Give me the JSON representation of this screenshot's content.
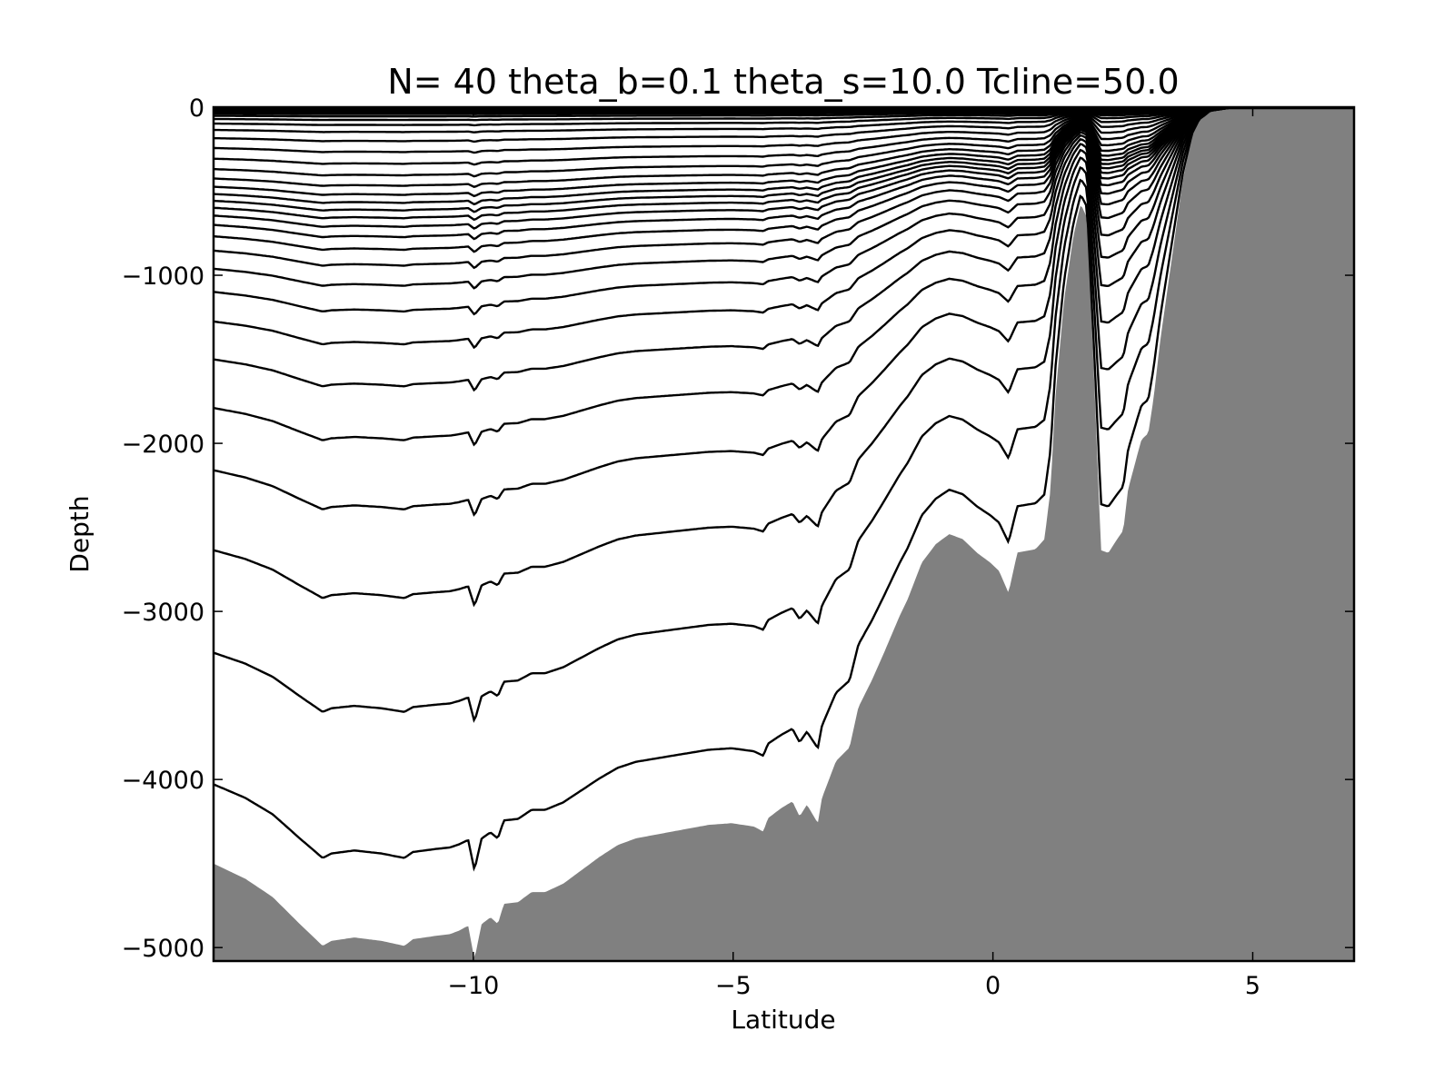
{
  "chart_data": {
    "type": "area",
    "title": "N= 40 theta_b=0.1 theta_s=10.0 Tcline=50.0",
    "xlabel": "Latitude",
    "ylabel": "Depth",
    "xlim": [
      -15.0,
      6.95
    ],
    "ylim": [
      -5080,
      0
    ],
    "xticks": [
      -10,
      -5,
      0,
      5
    ],
    "xtick_labels": [
      "−10",
      "−5",
      "0",
      "5"
    ],
    "yticks": [
      0,
      -1000,
      -2000,
      -3000,
      -4000,
      -5000
    ],
    "ytick_labels": [
      "0",
      "−1000",
      "−2000",
      "−3000",
      "−4000",
      "−5000"
    ],
    "grid": false,
    "params": {
      "N": 40,
      "theta_b": 0.1,
      "theta_s": 10.0,
      "Tcline": 50.0
    },
    "colors": {
      "bathymetry": "#808080",
      "levels": "#000000"
    },
    "bathymetry": [
      [
        -15.0,
        4500
      ],
      [
        -14.39,
        4590
      ],
      [
        -13.86,
        4700
      ],
      [
        -13.34,
        4860
      ],
      [
        -12.9,
        4990
      ],
      [
        -12.73,
        4960
      ],
      [
        -12.29,
        4940
      ],
      [
        -11.77,
        4960
      ],
      [
        -11.33,
        4990
      ],
      [
        -11.16,
        4950
      ],
      [
        -10.72,
        4930
      ],
      [
        -10.45,
        4920
      ],
      [
        -10.28,
        4900
      ],
      [
        -10.1,
        4870
      ],
      [
        -9.98,
        5070
      ],
      [
        -9.84,
        4860
      ],
      [
        -9.67,
        4820
      ],
      [
        -9.53,
        4860
      ],
      [
        -9.41,
        4740
      ],
      [
        -9.14,
        4730
      ],
      [
        -8.88,
        4670
      ],
      [
        -8.62,
        4670
      ],
      [
        -8.27,
        4620
      ],
      [
        -7.92,
        4540
      ],
      [
        -7.57,
        4460
      ],
      [
        -7.22,
        4390
      ],
      [
        -6.87,
        4350
      ],
      [
        -6.52,
        4330
      ],
      [
        -6.0,
        4300
      ],
      [
        -5.47,
        4270
      ],
      [
        -5.03,
        4260
      ],
      [
        -4.6,
        4280
      ],
      [
        -4.42,
        4310
      ],
      [
        -4.33,
        4230
      ],
      [
        -4.07,
        4170
      ],
      [
        -3.86,
        4130
      ],
      [
        -3.72,
        4220
      ],
      [
        -3.58,
        4150
      ],
      [
        -3.37,
        4260
      ],
      [
        -3.29,
        4110
      ],
      [
        -3.02,
        3890
      ],
      [
        -2.76,
        3810
      ],
      [
        -2.59,
        3570
      ],
      [
        -2.33,
        3410
      ],
      [
        -2.06,
        3220
      ],
      [
        -1.8,
        3030
      ],
      [
        -1.63,
        2920
      ],
      [
        -1.37,
        2710
      ],
      [
        -1.1,
        2600
      ],
      [
        -0.84,
        2540
      ],
      [
        -0.58,
        2570
      ],
      [
        -0.31,
        2650
      ],
      [
        -0.05,
        2710
      ],
      [
        0.12,
        2760
      ],
      [
        0.3,
        2890
      ],
      [
        0.47,
        2650
      ],
      [
        0.82,
        2630
      ],
      [
        0.99,
        2571
      ],
      [
        1.11,
        2275
      ],
      [
        1.2,
        1736
      ],
      [
        1.37,
        1143
      ],
      [
        1.55,
        765
      ],
      [
        1.69,
        577
      ],
      [
        1.81,
        658
      ],
      [
        1.95,
        1628
      ],
      [
        2.08,
        2636
      ],
      [
        2.22,
        2652
      ],
      [
        2.39,
        2571
      ],
      [
        2.51,
        2517
      ],
      [
        2.6,
        2275
      ],
      [
        2.74,
        2113
      ],
      [
        2.86,
        1978
      ],
      [
        2.99,
        1940
      ],
      [
        3.09,
        1736
      ],
      [
        3.21,
        1412
      ],
      [
        3.48,
        819
      ],
      [
        3.65,
        442
      ],
      [
        3.83,
        172
      ],
      [
        3.97,
        75
      ],
      [
        4.18,
        22
      ],
      [
        4.53,
        5
      ],
      [
        6.95,
        5
      ]
    ]
  }
}
